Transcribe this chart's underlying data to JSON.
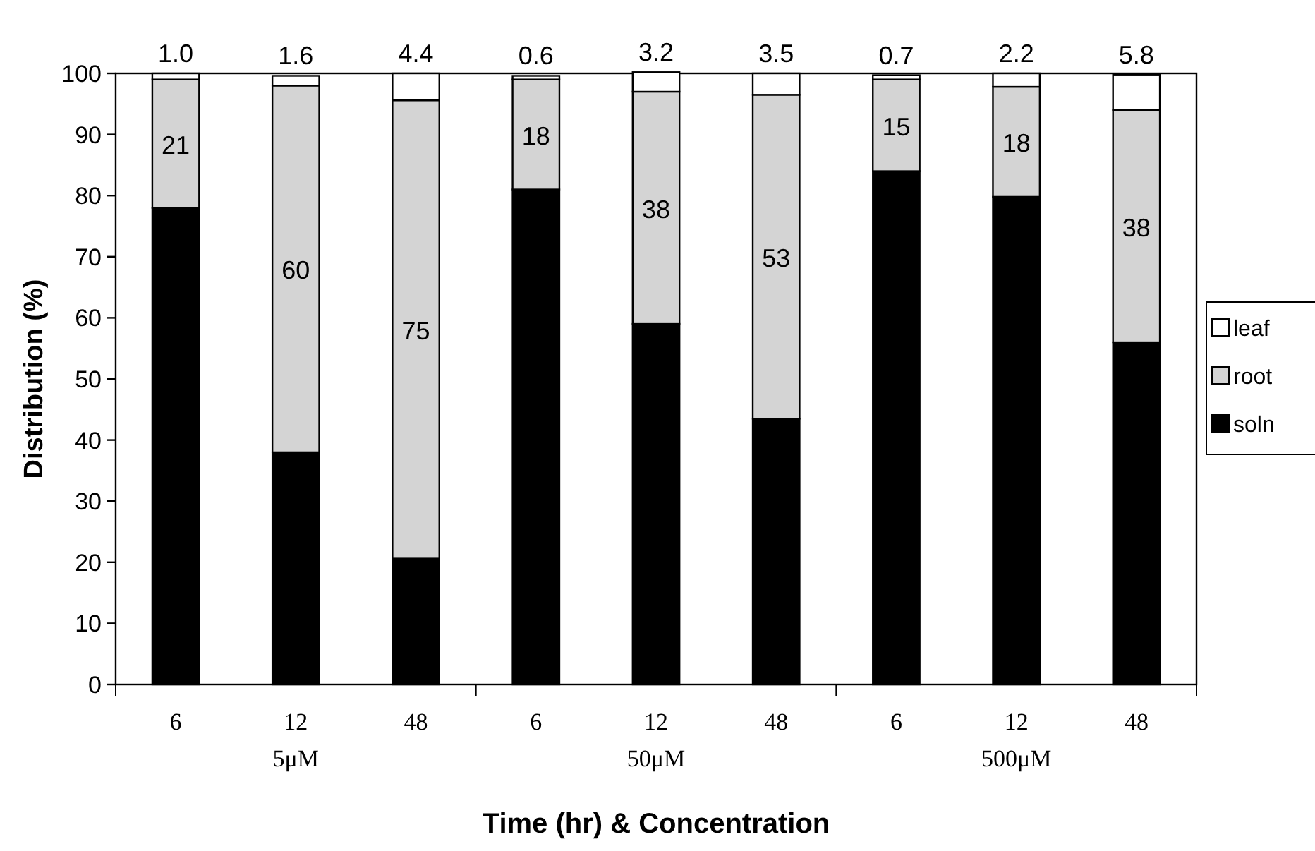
{
  "chart_data": {
    "type": "bar",
    "stacked": true,
    "xlabel": "Time (hr) & Concentration",
    "ylabel": "Distribution (%)",
    "categories": [
      "6",
      "12",
      "48",
      "6",
      "12",
      "48",
      "6",
      "12",
      "48"
    ],
    "series": [
      {
        "name": "soln",
        "color": "#000000",
        "values": [
          78,
          38,
          20.6,
          81,
          59,
          43.5,
          84,
          79.8,
          56
        ]
      },
      {
        "name": "root",
        "color": "#d4d4d4",
        "values": [
          21,
          60,
          75,
          18,
          38,
          53,
          15,
          18,
          38
        ],
        "value_labels": [
          "21",
          "60",
          "75",
          "18",
          "38",
          "53",
          "15",
          "18",
          "38"
        ]
      },
      {
        "name": "leaf",
        "color": "#ffffff",
        "values": [
          1.0,
          1.6,
          4.4,
          0.6,
          3.2,
          3.5,
          0.7,
          2.2,
          5.8
        ],
        "value_labels": [
          "1.0",
          "1.6",
          "4.4",
          "0.6",
          "3.2",
          "3.5",
          "0.7",
          "2.2",
          "5.8"
        ]
      }
    ],
    "annotations": [
      "5μM",
      "50μM",
      "500μM"
    ],
    "ylim": [
      0,
      100
    ],
    "yticks": [
      0,
      10,
      20,
      30,
      40,
      50,
      60,
      70,
      80,
      90,
      100
    ],
    "legend": "right",
    "grid": false
  }
}
